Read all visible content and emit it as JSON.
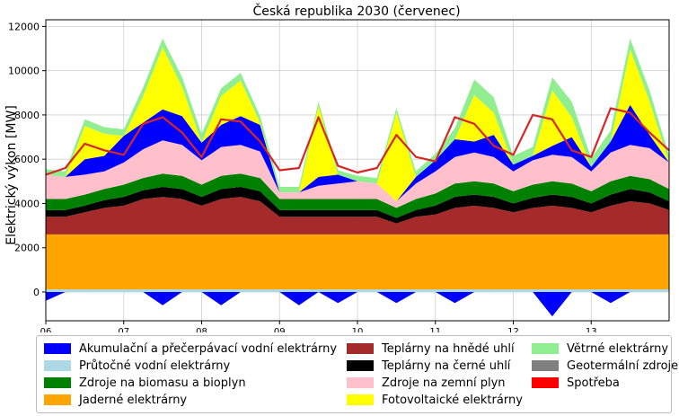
{
  "chart_data": {
    "type": "area",
    "title": "Česká republika 2030 (červenec)",
    "xlabel": "",
    "ylabel": "Elektrický výkon [MW]",
    "ylim": [
      -1300,
      12300
    ],
    "yticks": [
      0,
      2000,
      4000,
      6000,
      8000,
      10000,
      12000
    ],
    "xlim": [
      6,
      14
    ],
    "xticks": [
      {
        "value": 6,
        "label": "06"
      },
      {
        "value": 7,
        "label": "07"
      },
      {
        "value": 8,
        "label": "08"
      },
      {
        "value": 9,
        "label": "09"
      },
      {
        "value": 10,
        "label": "10"
      },
      {
        "value": 11,
        "label": "11"
      },
      {
        "value": 12,
        "label": "12"
      },
      {
        "value": 13,
        "label": "13"
      }
    ],
    "x_unit": "day of month (July 2030)",
    "grid": true,
    "legend_position": "bottom",
    "x": [
      6.0,
      6.25,
      6.5,
      6.75,
      7.0,
      7.25,
      7.5,
      7.75,
      8.0,
      8.25,
      8.5,
      8.75,
      9.0,
      9.25,
      9.5,
      9.75,
      10.0,
      10.25,
      10.5,
      10.75,
      11.0,
      11.25,
      11.5,
      11.75,
      12.0,
      12.25,
      12.5,
      12.75,
      13.0,
      13.25,
      13.5,
      13.75,
      14.0
    ],
    "series": [
      {
        "name": "Geotermální zdroje",
        "color": "#808080",
        "values": [
          0,
          0,
          0,
          0,
          0,
          0,
          0,
          0,
          0,
          0,
          0,
          0,
          0,
          0,
          0,
          0,
          0,
          0,
          0,
          0,
          0,
          0,
          0,
          0,
          0,
          0,
          0,
          0,
          0,
          0,
          0,
          0,
          0
        ]
      },
      {
        "name": "Průtočné vodní elektrárny",
        "color": "#add8e6",
        "values": [
          120,
          120,
          120,
          120,
          120,
          120,
          120,
          120,
          120,
          120,
          120,
          120,
          120,
          120,
          120,
          120,
          120,
          120,
          120,
          120,
          120,
          120,
          120,
          120,
          120,
          120,
          120,
          120,
          120,
          120,
          120,
          120,
          120
        ]
      },
      {
        "name": "Jaderné elektrárny",
        "color": "#ffa500",
        "values": [
          2480,
          2480,
          2480,
          2480,
          2480,
          2480,
          2480,
          2480,
          2480,
          2480,
          2480,
          2480,
          2480,
          2480,
          2480,
          2480,
          2480,
          2480,
          2480,
          2480,
          2480,
          2480,
          2480,
          2480,
          2480,
          2480,
          2480,
          2480,
          2480,
          2480,
          2480,
          2480,
          2480
        ]
      },
      {
        "name": "Teplárny na hnědé uhlí",
        "color": "#a52a2a",
        "values": [
          800,
          800,
          1000,
          1200,
          1300,
          1600,
          1700,
          1600,
          1300,
          1600,
          1700,
          1500,
          800,
          800,
          800,
          800,
          800,
          800,
          500,
          800,
          900,
          1200,
          1300,
          1200,
          1000,
          1200,
          1300,
          1200,
          1000,
          1300,
          1500,
          1400,
          1100
        ]
      },
      {
        "name": "Teplárny na černé uhlí",
        "color": "#000000",
        "values": [
          300,
          300,
          300,
          350,
          400,
          400,
          450,
          450,
          400,
          450,
          450,
          450,
          300,
          300,
          300,
          300,
          300,
          300,
          250,
          300,
          400,
          500,
          500,
          500,
          400,
          450,
          500,
          500,
          400,
          500,
          550,
          500,
          400
        ]
      },
      {
        "name": "Zdroje na biomasu a bioplyn",
        "color": "#008000",
        "values": [
          500,
          500,
          500,
          500,
          550,
          550,
          600,
          600,
          550,
          600,
          600,
          600,
          500,
          500,
          500,
          500,
          500,
          500,
          450,
          500,
          550,
          600,
          600,
          600,
          550,
          600,
          600,
          600,
          550,
          600,
          600,
          600,
          550
        ]
      },
      {
        "name": "Zdroje na zemní plyn",
        "color": "#ffc0cb",
        "values": [
          1100,
          1000,
          900,
          800,
          1000,
          1300,
          1500,
          1400,
          1100,
          1300,
          1300,
          1200,
          300,
          300,
          600,
          700,
          800,
          700,
          300,
          700,
          1000,
          1200,
          1300,
          1200,
          900,
          1100,
          1200,
          1200,
          900,
          1300,
          1400,
          1400,
          1200
        ]
      },
      {
        "name": "Akumulační a přečerpávací vodní elektrárny",
        "color": "#0000ff",
        "values": [
          0,
          0,
          700,
          700,
          1200,
          1200,
          1400,
          1300,
          800,
          1000,
          1300,
          1200,
          0,
          0,
          400,
          400,
          0,
          0,
          0,
          300,
          500,
          800,
          500,
          1000,
          300,
          200,
          400,
          900,
          200,
          500,
          1800,
          600,
          0
        ]
      },
      {
        "name": "Fotovoltaické elektrárny",
        "color": "#ffff00",
        "values": [
          0,
          0,
          1500,
          1000,
          0,
          1200,
          2800,
          1300,
          0,
          1300,
          1600,
          100,
          0,
          0,
          3200,
          0,
          0,
          0,
          4000,
          0,
          0,
          0,
          2100,
          1000,
          0,
          0,
          2500,
          900,
          0,
          0,
          2500,
          1500,
          0
        ]
      },
      {
        "name": "Větrné elektrárny",
        "color": "#90ee90",
        "values": [
          250,
          250,
          300,
          300,
          300,
          400,
          400,
          450,
          400,
          350,
          350,
          300,
          250,
          250,
          200,
          200,
          250,
          250,
          200,
          250,
          300,
          500,
          700,
          700,
          400,
          400,
          600,
          700,
          400,
          500,
          500,
          500,
          300
        ]
      },
      {
        "name": "Spotřeba",
        "color": "#ff0000",
        "values": [
          5300,
          5600,
          6700,
          6400,
          6200,
          7600,
          7900,
          7200,
          6100,
          7800,
          7700,
          6800,
          5500,
          5600,
          7900,
          5700,
          5400,
          5600,
          7100,
          6100,
          5900,
          7900,
          7600,
          6600,
          6200,
          8000,
          7800,
          6400,
          6100,
          8300,
          8100,
          7200,
          6400
        ]
      }
    ],
    "storage_consumption": {
      "name": "Akumulační a přečerpávací vodní elektrárny",
      "color": "#0000ff",
      "values": [
        -400,
        0,
        0,
        0,
        0,
        0,
        -600,
        0,
        0,
        -600,
        0,
        0,
        0,
        -600,
        0,
        -500,
        0,
        0,
        -500,
        0,
        0,
        -500,
        0,
        0,
        0,
        0,
        -1100,
        0,
        0,
        -500,
        0,
        0,
        0
      ]
    }
  },
  "legend": [
    {
      "label": "Akumulační a přečerpávací vodní elektrárny",
      "color": "#0000ff"
    },
    {
      "label": "Průtočné vodní elektrárny",
      "color": "#add8e6"
    },
    {
      "label": "Zdroje na biomasu a bioplyn",
      "color": "#008000"
    },
    {
      "label": "Jaderné elektrárny",
      "color": "#ffa500"
    },
    {
      "label": "Teplárny na hnědé uhlí",
      "color": "#a52a2a"
    },
    {
      "label": "Teplárny na černé uhlí",
      "color": "#000000"
    },
    {
      "label": "Zdroje na zemní plyn",
      "color": "#ffc0cb"
    },
    {
      "label": "Fotovoltaické elektrárny",
      "color": "#ffff00"
    },
    {
      "label": "Větrné elektrárny",
      "color": "#90ee90"
    },
    {
      "label": "Geotermální zdroje",
      "color": "#808080"
    },
    {
      "label": "Spotřeba",
      "color": "#ff0000"
    }
  ]
}
